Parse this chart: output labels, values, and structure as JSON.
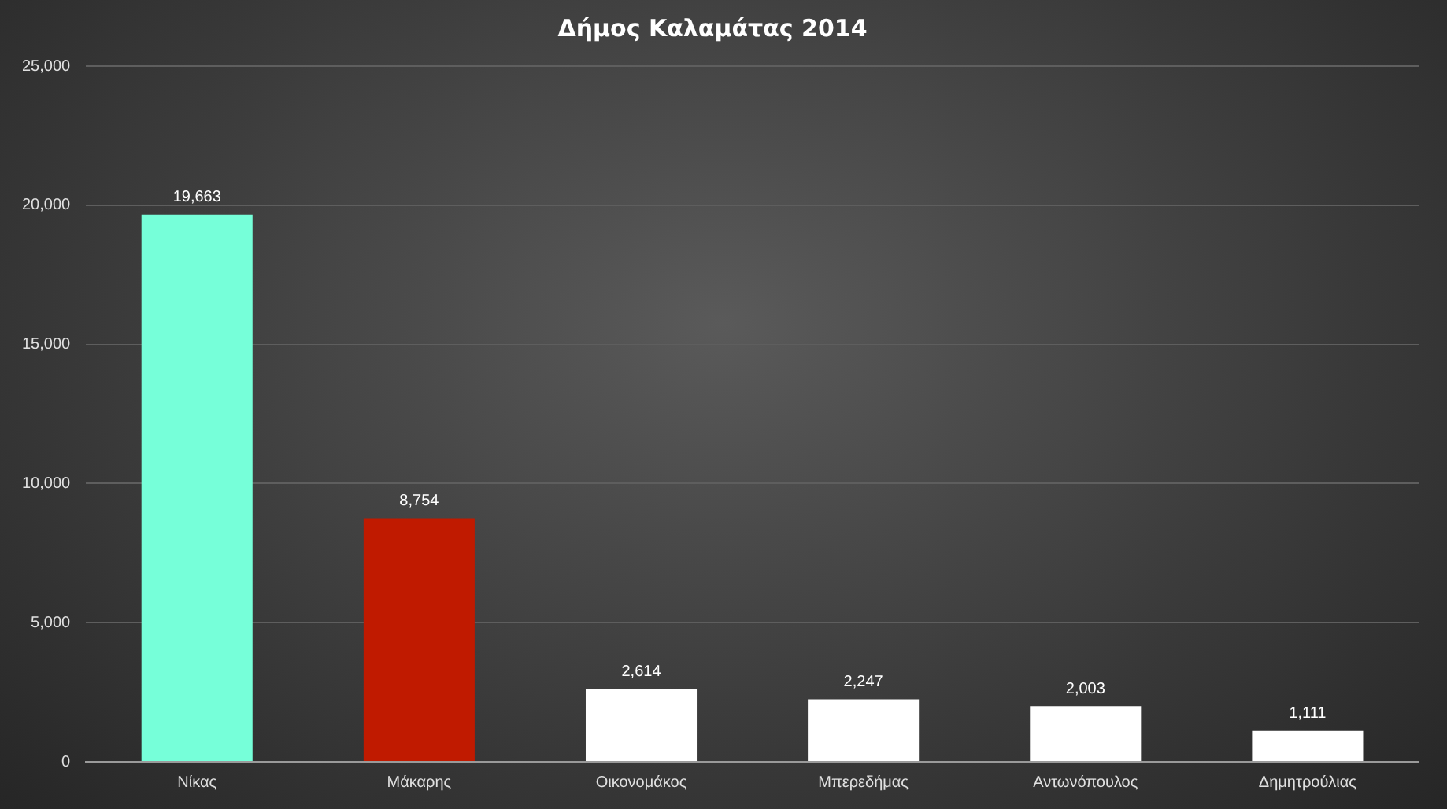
{
  "chart_data": {
    "type": "bar",
    "title": "Δήμος Καλαμάτας 2014",
    "categories": [
      "Νίκας",
      "Μάκαρης",
      "Οικονομάκος",
      "Μπερεδήμας",
      "Αντωνόπουλος",
      "Δημητρούλιας"
    ],
    "values": [
      19663,
      8754,
      2614,
      2247,
      2003,
      1111
    ],
    "colors": [
      "#76ffd9",
      "#c01a00",
      "#ffffff",
      "#ffffff",
      "#ffffff",
      "#ffffff"
    ],
    "value_labels": [
      "19,663",
      "8,754",
      "2,614",
      "2,247",
      "2,003",
      "1,111"
    ],
    "ylim": [
      0,
      25000
    ],
    "yticks": [
      0,
      {
        "value": 5000,
        "label": "5,000"
      },
      {
        "value": 10000,
        "label": "10,000"
      },
      {
        "value": 15000,
        "label": "15,000"
      },
      {
        "value": 20000,
        "label": "20,000"
      },
      {
        "value": 25000,
        "label": "25,000"
      }
    ],
    "grid": "y"
  }
}
